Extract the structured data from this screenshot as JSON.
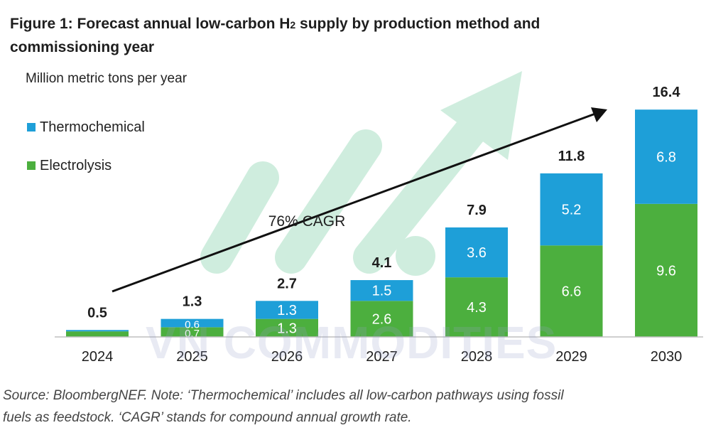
{
  "figure": {
    "title_prefix": "Figure 1: Forecast annual low-carbon H",
    "title_subscript": "2",
    "title_line1_suffix": " supply by production method and",
    "title_line2": "commissioning year",
    "unit_label": "Million metric tons per year",
    "source_note_line1": "Source: BloombergNEF. Note: ‘Thermochemical’ includes all low-carbon pathways using fossil",
    "source_note_line2": "fuels as feedstock. ‘CAGR’ stands for compound annual growth rate."
  },
  "watermark": {
    "text": "VN COMMODITIES"
  },
  "colors": {
    "thermochemical": "#1e9fd8",
    "electrolysis": "#4caf3e",
    "axis": "#bfbfbf",
    "arrow": "#111111",
    "watermark_arrow": "#a8e0c4"
  },
  "chart_data": {
    "type": "bar",
    "stacked": true,
    "title": "Figure 1: Forecast annual low-carbon H2 supply by production method and commissioning year",
    "ylabel": "Million metric tons per year",
    "xlabel": "",
    "categories": [
      "2024",
      "2025",
      "2026",
      "2027",
      "2028",
      "2029",
      "2030"
    ],
    "ylim": [
      0,
      16.4
    ],
    "series": [
      {
        "name": "Electrolysis",
        "values": [
          0.4,
          0.7,
          1.3,
          2.6,
          4.3,
          6.6,
          9.6
        ],
        "labels": [
          "",
          "0.7",
          "1.3",
          "2.6",
          "4.3",
          "6.6",
          "9.6"
        ]
      },
      {
        "name": "Thermochemical",
        "values": [
          0.1,
          0.6,
          1.3,
          1.5,
          3.6,
          5.2,
          6.8
        ],
        "labels": [
          "",
          "0.6",
          "1.3",
          "1.5",
          "3.6",
          "5.2",
          "6.8"
        ]
      }
    ],
    "legend": [
      "Thermochemical",
      "Electrolysis"
    ],
    "totals": [
      "0.5",
      "1.3",
      "2.7",
      "4.1",
      "7.9",
      "11.8",
      "16.4"
    ],
    "annotation": "76% CAGR",
    "grid": false,
    "legend_position": "top-left"
  }
}
